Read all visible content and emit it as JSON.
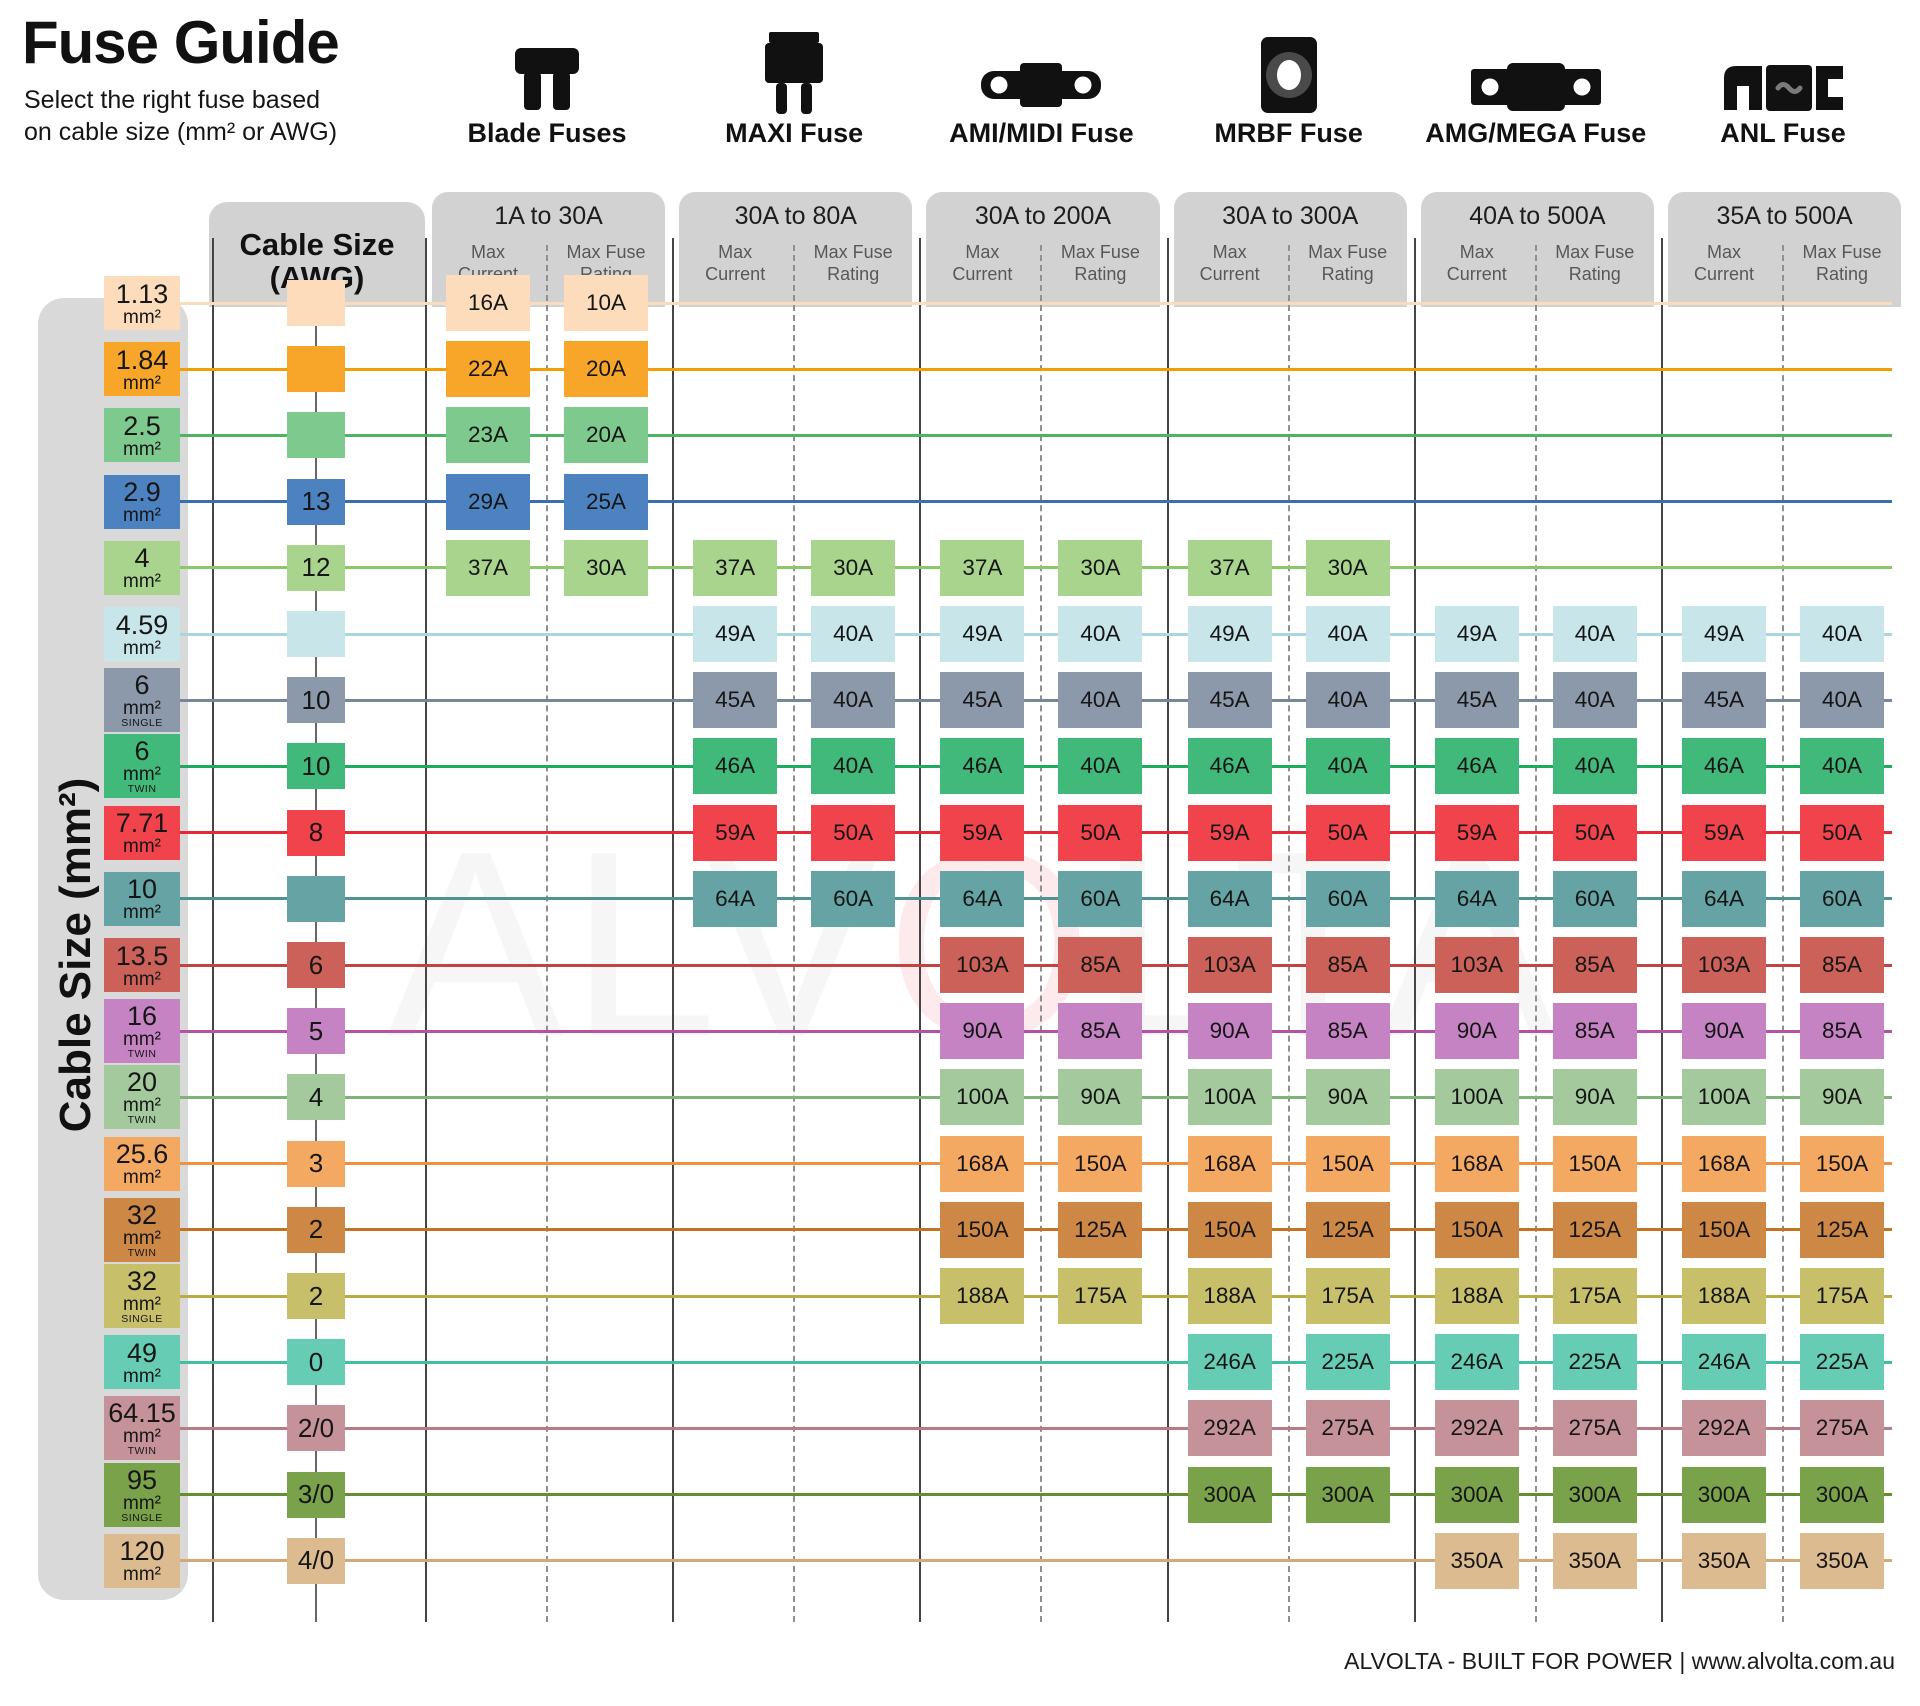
{
  "page": {
    "title": "Fuse Guide",
    "subtitle": [
      "Select the right fuse based",
      "on cable size (mm² or AWG)"
    ],
    "left_axis_label": "Cable Size (mm²)",
    "awg_header": [
      "Cable Size",
      "(AWG)"
    ],
    "unit_label": "mm²",
    "watermark_parts": [
      "ALV",
      "O",
      "LTA"
    ],
    "footer": "ALVOLTA - BUILT FOR POWER | www.alvolta.com.au"
  },
  "labels": {
    "max_current": [
      "Max",
      "Current"
    ],
    "max_fuse_rating": [
      "Max Fuse",
      "Rating"
    ]
  },
  "groups": [
    {
      "name": "Blade Fuses",
      "range": "1A to 30A",
      "icon": "blade-fuse-icon"
    },
    {
      "name": "MAXI Fuse",
      "range": "30A to 80A",
      "icon": "maxi-fuse-icon"
    },
    {
      "name": "AMI/MIDI Fuse",
      "range": "30A to 200A",
      "icon": "ami-midi-fuse-icon"
    },
    {
      "name": "MRBF Fuse",
      "range": "30A to 300A",
      "icon": "mrbf-fuse-icon"
    },
    {
      "name": "AMG/MEGA Fuse",
      "range": "40A to 500A",
      "icon": "amg-mega-fuse-icon"
    },
    {
      "name": "ANL Fuse",
      "range": "35A to 500A",
      "icon": "anl-fuse-icon"
    }
  ],
  "rows": [
    {
      "size": "1.13",
      "variant": "",
      "awg": "",
      "color": "#fcdcbb",
      "line": "#fadcba",
      "cells": [
        [
          "16A",
          "10A"
        ],
        null,
        null,
        null,
        null,
        null
      ]
    },
    {
      "size": "1.84",
      "variant": "",
      "awg": "",
      "color": "#f8a62a",
      "line": "#f29c07",
      "cells": [
        [
          "22A",
          "20A"
        ],
        null,
        null,
        null,
        null,
        null
      ]
    },
    {
      "size": "2.5",
      "variant": "",
      "awg": "",
      "color": "#7dc98e",
      "line": "#4db465",
      "cells": [
        [
          "23A",
          "20A"
        ],
        null,
        null,
        null,
        null,
        null
      ]
    },
    {
      "size": "2.9",
      "variant": "",
      "awg": "13",
      "color": "#4d82c0",
      "line": "#3a6fae",
      "cells": [
        [
          "29A",
          "25A"
        ],
        null,
        null,
        null,
        null,
        null
      ]
    },
    {
      "size": "4",
      "variant": "",
      "awg": "12",
      "color": "#a9d48e",
      "line": "#8cc767",
      "cells": [
        [
          "37A",
          "30A"
        ],
        [
          "37A",
          "30A"
        ],
        [
          "37A",
          "30A"
        ],
        [
          "37A",
          "30A"
        ],
        null,
        null
      ]
    },
    {
      "size": "4.59",
      "variant": "",
      "awg": "",
      "color": "#c8e5ea",
      "line": "#a8d8de",
      "cells": [
        null,
        [
          "49A",
          "40A"
        ],
        [
          "49A",
          "40A"
        ],
        [
          "49A",
          "40A"
        ],
        [
          "49A",
          "40A"
        ],
        [
          "49A",
          "40A"
        ]
      ]
    },
    {
      "size": "6",
      "variant": "SINGLE",
      "awg": "10",
      "color": "#8b99ab",
      "line": "#76879c",
      "cells": [
        null,
        [
          "45A",
          "40A"
        ],
        [
          "45A",
          "40A"
        ],
        [
          "45A",
          "40A"
        ],
        [
          "45A",
          "40A"
        ],
        [
          "45A",
          "40A"
        ]
      ]
    },
    {
      "size": "6",
      "variant": "TWIN",
      "awg": "10",
      "color": "#41b97a",
      "line": "#21a95f",
      "cells": [
        null,
        [
          "46A",
          "40A"
        ],
        [
          "46A",
          "40A"
        ],
        [
          "46A",
          "40A"
        ],
        [
          "46A",
          "40A"
        ],
        [
          "46A",
          "40A"
        ]
      ]
    },
    {
      "size": "7.71",
      "variant": "",
      "awg": "8",
      "color": "#f0434b",
      "line": "#e62832",
      "cells": [
        null,
        [
          "59A",
          "50A"
        ],
        [
          "59A",
          "50A"
        ],
        [
          "59A",
          "50A"
        ],
        [
          "59A",
          "50A"
        ],
        [
          "59A",
          "50A"
        ]
      ]
    },
    {
      "size": "10",
      "variant": "",
      "awg": "",
      "color": "#65a3a4",
      "line": "#4f9294",
      "cells": [
        null,
        [
          "64A",
          "60A"
        ],
        [
          "64A",
          "60A"
        ],
        [
          "64A",
          "60A"
        ],
        [
          "64A",
          "60A"
        ],
        [
          "64A",
          "60A"
        ]
      ]
    },
    {
      "size": "13.5",
      "variant": "",
      "awg": "6",
      "color": "#cb6159",
      "line": "#c24440",
      "cells": [
        null,
        null,
        [
          "103A",
          "85A"
        ],
        [
          "103A",
          "85A"
        ],
        [
          "103A",
          "85A"
        ],
        [
          "103A",
          "85A"
        ]
      ]
    },
    {
      "size": "16",
      "variant": "TWIN",
      "awg": "5",
      "color": "#c583c3",
      "line": "#b551a8",
      "cells": [
        null,
        null,
        [
          "90A",
          "85A"
        ],
        [
          "90A",
          "85A"
        ],
        [
          "90A",
          "85A"
        ],
        [
          "90A",
          "85A"
        ]
      ]
    },
    {
      "size": "20",
      "variant": "TWIN",
      "awg": "4",
      "color": "#a3c99d",
      "line": "#7eb479",
      "cells": [
        null,
        null,
        [
          "100A",
          "90A"
        ],
        [
          "100A",
          "90A"
        ],
        [
          "100A",
          "90A"
        ],
        [
          "100A",
          "90A"
        ]
      ]
    },
    {
      "size": "25.6",
      "variant": "",
      "awg": "3",
      "color": "#f4a963",
      "line": "#ef9140",
      "cells": [
        null,
        null,
        [
          "168A",
          "150A"
        ],
        [
          "168A",
          "150A"
        ],
        [
          "168A",
          "150A"
        ],
        [
          "168A",
          "150A"
        ]
      ]
    },
    {
      "size": "32",
      "variant": "TWIN",
      "awg": "2",
      "color": "#cd8845",
      "line": "#c37322",
      "cells": [
        null,
        null,
        [
          "150A",
          "125A"
        ],
        [
          "150A",
          "125A"
        ],
        [
          "150A",
          "125A"
        ],
        [
          "150A",
          "125A"
        ]
      ]
    },
    {
      "size": "32",
      "variant": "SINGLE",
      "awg": "2",
      "color": "#c8bf6b",
      "line": "#b9ad42",
      "cells": [
        null,
        null,
        [
          "188A",
          "175A"
        ],
        [
          "188A",
          "175A"
        ],
        [
          "188A",
          "175A"
        ],
        [
          "188A",
          "175A"
        ]
      ]
    },
    {
      "size": "49",
      "variant": "",
      "awg": "0",
      "color": "#66cdb4",
      "line": "#41bfa1",
      "cells": [
        null,
        null,
        null,
        [
          "246A",
          "225A"
        ],
        [
          "246A",
          "225A"
        ],
        [
          "246A",
          "225A"
        ]
      ]
    },
    {
      "size": "64.15",
      "variant": "TWIN",
      "awg": "2/0",
      "color": "#c6929a",
      "line": "#b87a83",
      "cells": [
        null,
        null,
        null,
        [
          "292A",
          "275A"
        ],
        [
          "292A",
          "275A"
        ],
        [
          "292A",
          "275A"
        ]
      ]
    },
    {
      "size": "95",
      "variant": "SINGLE",
      "awg": "3/0",
      "color": "#7aa24a",
      "line": "#648f2f",
      "cells": [
        null,
        null,
        null,
        [
          "300A",
          "300A"
        ],
        [
          "300A",
          "300A"
        ],
        [
          "300A",
          "300A"
        ]
      ]
    },
    {
      "size": "120",
      "variant": "",
      "awg": "4/0",
      "color": "#ddbb90",
      "line": "#d2a977",
      "cells": [
        null,
        null,
        null,
        null,
        [
          "350A",
          "350A"
        ],
        [
          "350A",
          "350A"
        ]
      ]
    }
  ],
  "chart_data": {
    "type": "table",
    "title": "Fuse Guide",
    "subtitle": "Select the right fuse based on cable size (mm² or AWG)",
    "row_axis_label": "Cable Size (mm²) / Cable Size (AWG)",
    "columns": [
      "Blade Fuses (1A to 30A) Max Current (A)",
      "Blade Fuses (1A to 30A) Max Fuse Rating (A)",
      "MAXI Fuse (30A to 80A) Max Current (A)",
      "MAXI Fuse (30A to 80A) Max Fuse Rating (A)",
      "AMI/MIDI Fuse (30A to 200A) Max Current (A)",
      "AMI/MIDI Fuse (30A to 200A) Max Fuse Rating (A)",
      "MRBF Fuse (30A to 300A) Max Current (A)",
      "MRBF Fuse (30A to 300A) Max Fuse Rating (A)",
      "AMG/MEGA Fuse (40A to 500A) Max Current (A)",
      "AMG/MEGA Fuse (40A to 500A) Max Fuse Rating (A)",
      "ANL Fuse (35A to 500A) Max Current (A)",
      "ANL Fuse (35A to 500A) Max Fuse Rating (A)"
    ],
    "categories": [
      "1.13 mm²",
      "1.84 mm²",
      "2.5 mm²",
      "2.9 mm² (13 AWG)",
      "4 mm² (12 AWG)",
      "4.59 mm²",
      "6 mm² SINGLE (10 AWG)",
      "6 mm² TWIN (10 AWG)",
      "7.71 mm² (8 AWG)",
      "10 mm²",
      "13.5 mm² (6 AWG)",
      "16 mm² TWIN (5 AWG)",
      "20 mm² TWIN (4 AWG)",
      "25.6 mm² (3 AWG)",
      "32 mm² TWIN (2 AWG)",
      "32 mm² SINGLE (2 AWG)",
      "49 mm² (0 AWG)",
      "64.15 mm² TWIN (2/0 AWG)",
      "95 mm² SINGLE (3/0 AWG)",
      "120 mm² (4/0 AWG)"
    ],
    "values": [
      [
        16,
        10,
        null,
        null,
        null,
        null,
        null,
        null,
        null,
        null,
        null,
        null
      ],
      [
        22,
        20,
        null,
        null,
        null,
        null,
        null,
        null,
        null,
        null,
        null,
        null
      ],
      [
        23,
        20,
        null,
        null,
        null,
        null,
        null,
        null,
        null,
        null,
        null,
        null
      ],
      [
        29,
        25,
        null,
        null,
        null,
        null,
        null,
        null,
        null,
        null,
        null,
        null
      ],
      [
        37,
        30,
        37,
        30,
        37,
        30,
        37,
        30,
        null,
        null,
        null,
        null
      ],
      [
        null,
        null,
        49,
        40,
        49,
        40,
        49,
        40,
        49,
        40,
        49,
        40
      ],
      [
        null,
        null,
        45,
        40,
        45,
        40,
        45,
        40,
        45,
        40,
        45,
        40
      ],
      [
        null,
        null,
        46,
        40,
        46,
        40,
        46,
        40,
        46,
        40,
        46,
        40
      ],
      [
        null,
        null,
        59,
        50,
        59,
        50,
        59,
        50,
        59,
        50,
        59,
        50
      ],
      [
        null,
        null,
        64,
        60,
        64,
        60,
        64,
        60,
        64,
        60,
        64,
        60
      ],
      [
        null,
        null,
        null,
        null,
        103,
        85,
        103,
        85,
        103,
        85,
        103,
        85
      ],
      [
        null,
        null,
        null,
        null,
        90,
        85,
        90,
        85,
        90,
        85,
        90,
        85
      ],
      [
        null,
        null,
        null,
        null,
        100,
        90,
        100,
        90,
        100,
        90,
        100,
        90
      ],
      [
        null,
        null,
        null,
        null,
        168,
        150,
        168,
        150,
        168,
        150,
        168,
        150
      ],
      [
        null,
        null,
        null,
        null,
        150,
        125,
        150,
        125,
        150,
        125,
        150,
        125
      ],
      [
        null,
        null,
        null,
        null,
        188,
        175,
        188,
        175,
        188,
        175,
        188,
        175
      ],
      [
        null,
        null,
        null,
        null,
        null,
        null,
        246,
        225,
        246,
        225,
        246,
        225
      ],
      [
        null,
        null,
        null,
        null,
        null,
        null,
        292,
        275,
        292,
        275,
        292,
        275
      ],
      [
        null,
        null,
        null,
        null,
        null,
        null,
        300,
        300,
        300,
        300,
        300,
        300
      ],
      [
        null,
        null,
        null,
        null,
        null,
        null,
        null,
        null,
        350,
        350,
        350,
        350
      ]
    ]
  }
}
